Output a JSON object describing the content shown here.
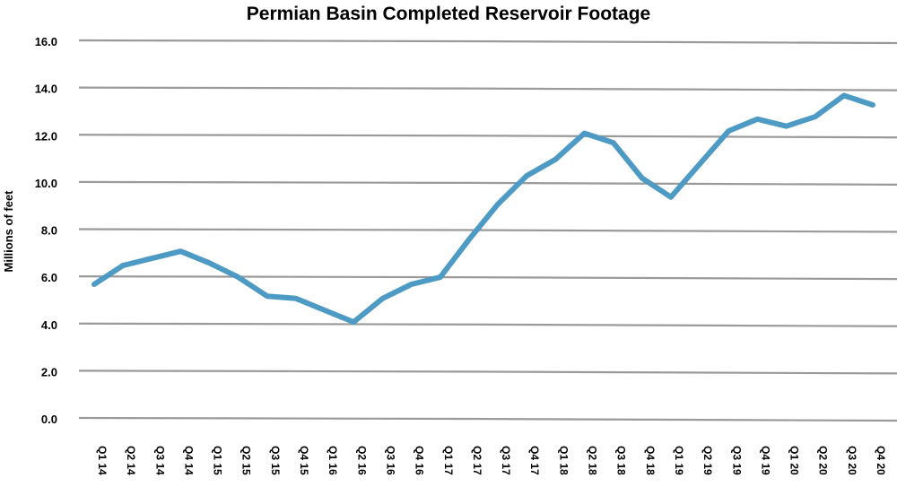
{
  "chart_data": {
    "type": "line",
    "title": "Permian Basin Completed Reservoir Footage",
    "ylabel": "Millions of feet",
    "xlabel": "",
    "ylim": [
      0,
      16
    ],
    "yticks": [
      "0.0",
      "2.0",
      "4.0",
      "6.0",
      "8.0",
      "10.0",
      "12.0",
      "14.0",
      "16.0"
    ],
    "grid": true,
    "legend": "none",
    "categories": [
      "Q1 14",
      "Q2 14",
      "Q3 14",
      "Q4 14",
      "Q1 15",
      "Q2 15",
      "Q3 15",
      "Q4 15",
      "Q1 16",
      "Q2 16",
      "Q3 16",
      "Q4 16",
      "Q1 17",
      "Q2 17",
      "Q3 17",
      "Q4 17",
      "Q1 18",
      "Q2 18",
      "Q3 18",
      "Q4 18",
      "Q1 19",
      "Q2 19",
      "Q3 19",
      "Q4 19",
      "Q1 20",
      "Q2 20",
      "Q3 20",
      "Q4 20"
    ],
    "series": [
      {
        "color": "#4d9ac4",
        "values": [
          5.7,
          6.5,
          6.8,
          7.1,
          6.6,
          6.0,
          5.2,
          5.1,
          4.6,
          4.1,
          5.1,
          5.7,
          6.0,
          7.6,
          9.1,
          10.3,
          11.0,
          12.1,
          11.7,
          10.2,
          9.4,
          10.8,
          12.2,
          12.7,
          12.4,
          12.8,
          13.7,
          13.3
        ]
      }
    ]
  }
}
